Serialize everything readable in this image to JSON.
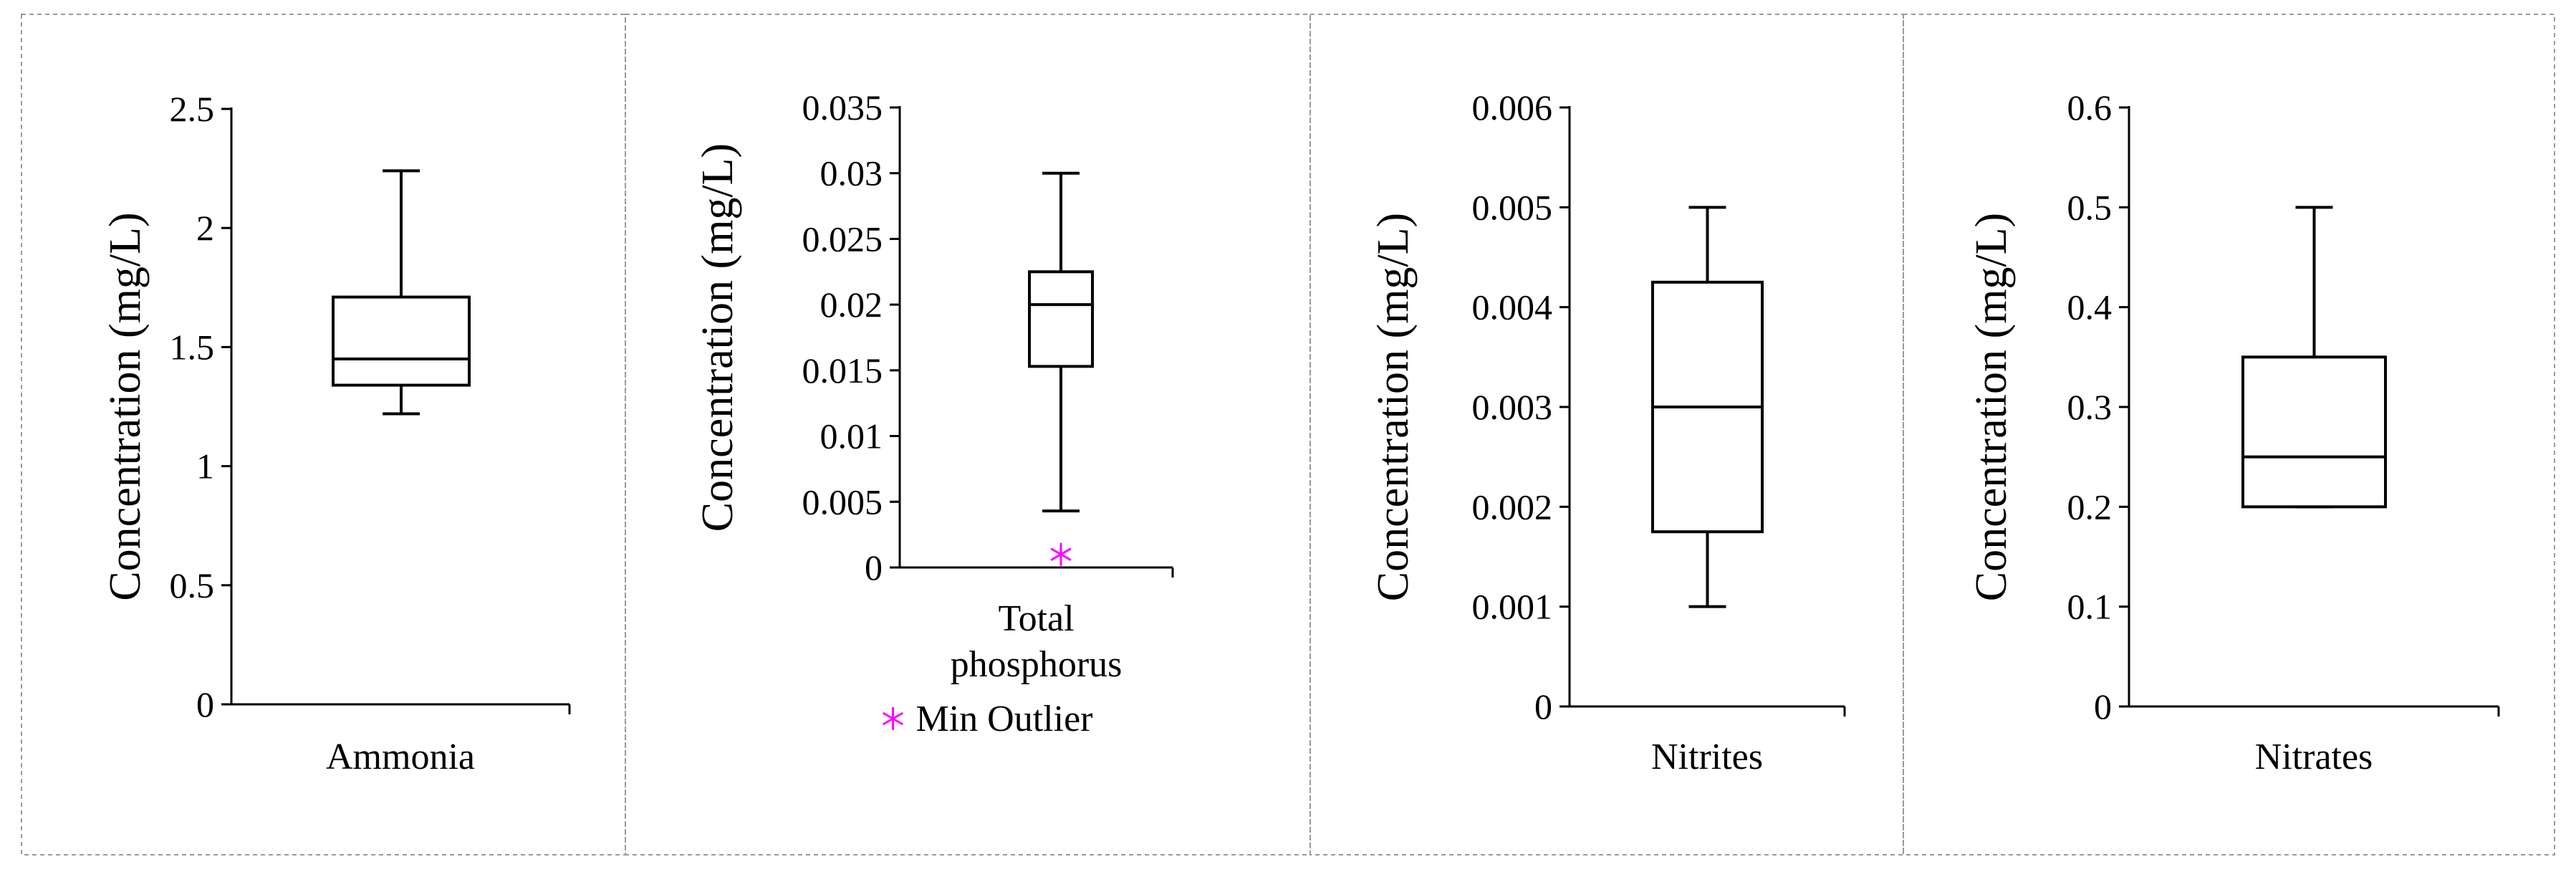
{
  "chart_data": [
    {
      "type": "box",
      "category": "Ammonia",
      "ylabel": "Concentration (mg/L)",
      "ylim": [
        0,
        2.5
      ],
      "yticks": [
        "0",
        "0.5",
        "1",
        "1.5",
        "2",
        "2.5"
      ],
      "box": {
        "min": 1.22,
        "q1": 1.34,
        "median": 1.45,
        "q3": 1.71,
        "max": 2.24
      }
    },
    {
      "type": "box",
      "category": "Total phosphorus",
      "category_lines": [
        "Total",
        "phosphorus"
      ],
      "ylabel": "Concentration (mg/L)",
      "ylim": [
        0,
        0.035
      ],
      "yticks": [
        "0",
        "0.005",
        "0.01",
        "0.015",
        "0.02",
        "0.025",
        "0.03",
        "0.035"
      ],
      "box": {
        "min": 0.0043,
        "q1": 0.0153,
        "median": 0.02,
        "q3": 0.0225,
        "max": 0.03
      },
      "outliers": [
        0.001
      ],
      "legend": {
        "label": "Min Outlier",
        "color": "#ff00ff",
        "marker": "asterisk",
        "placement": "bottom"
      }
    },
    {
      "type": "box",
      "category": "Nitrites",
      "ylabel": "Concentration (mg/L)",
      "ylim": [
        0,
        0.006
      ],
      "yticks": [
        "0",
        "0.001",
        "0.002",
        "0.003",
        "0.004",
        "0.005",
        "0.006"
      ],
      "box": {
        "min": 0.001,
        "q1": 0.00175,
        "median": 0.003,
        "q3": 0.00425,
        "max": 0.005
      }
    },
    {
      "type": "box",
      "category": "Nitrates",
      "ylabel": "Concentration (mg/L)",
      "ylim": [
        0,
        0.6
      ],
      "yticks": [
        "0",
        "0.1",
        "0.2",
        "0.3",
        "0.4",
        "0.5",
        "0.6"
      ],
      "box": {
        "min": 0.2,
        "q1": 0.2,
        "median": 0.25,
        "q3": 0.35,
        "max": 0.5
      }
    }
  ]
}
